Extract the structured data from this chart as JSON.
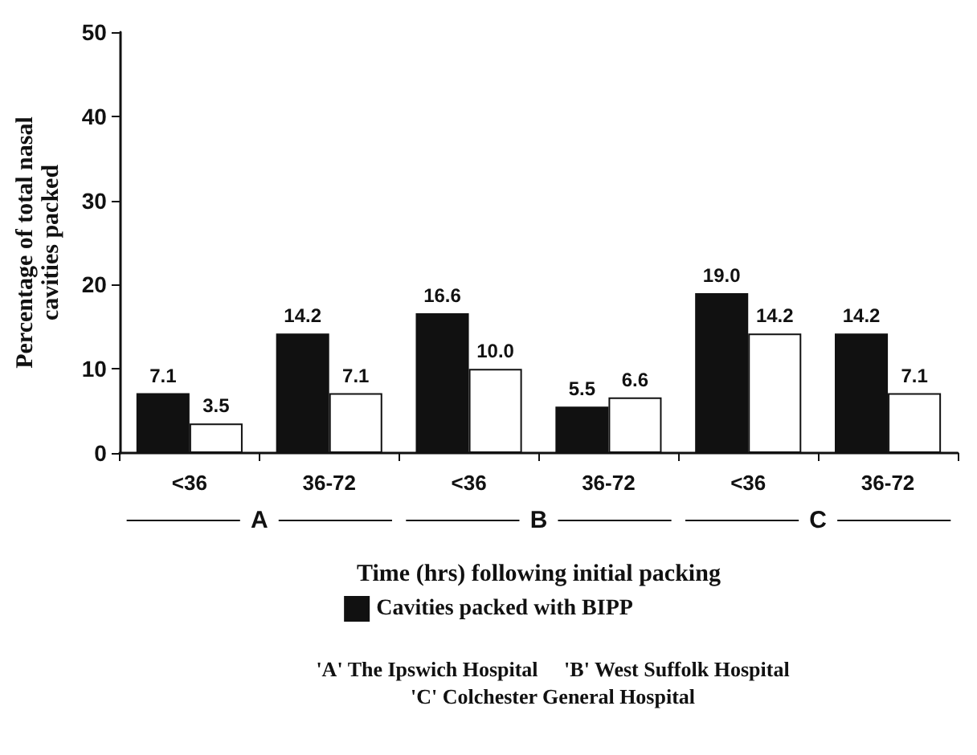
{
  "chart_data": {
    "type": "bar",
    "xlabel": "Time (hrs) following initial packing",
    "ylabel": "Percentage of total nasal\ncavities packed",
    "categories": [
      "<36",
      "36-72",
      "<36",
      "36-72",
      "<36",
      "36-72"
    ],
    "series": [
      {
        "name": "Cavities packed with BIPP",
        "color": "#111111",
        "values": [
          7.1,
          14.2,
          16.6,
          5.5,
          19.0,
          14.2
        ]
      },
      {
        "color": "#ffffff",
        "values": [
          3.5,
          7.1,
          10.0,
          6.6,
          14.2,
          7.1
        ]
      }
    ],
    "value_labels": [
      [
        "7.1",
        "14.2",
        "16.6",
        "5.5",
        "19.0",
        "14.2"
      ],
      [
        "3.5",
        "7.1",
        "10.0",
        "6.6",
        "14.2",
        "7.1"
      ]
    ],
    "ylim": [
      0,
      50
    ],
    "yticks": [
      0,
      10,
      20,
      30,
      40,
      50
    ],
    "grid": false,
    "legend": "bottom",
    "annotations": [
      "A",
      "B",
      "C",
      "'A' The Ipswich Hospital     'B' West Suffolk Hospital\n'C' Colchester General Hospital"
    ]
  }
}
